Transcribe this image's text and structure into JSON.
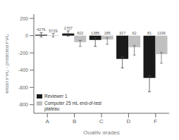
{
  "chart_data": {
    "type": "bar",
    "categories": [
      "A",
      "B",
      "C",
      "D",
      "F"
    ],
    "x_label": "Quality grades",
    "y_label": "Mean FVC - predicted FVC",
    "series": [
      {
        "name": "Reviewer 1",
        "color": "#1a1a1a",
        "values": [
          10,
          25,
          -50,
          -270,
          -490
        ],
        "error_lo": [
          25,
          30,
          75,
          105,
          160
        ],
        "error_hi": [
          25,
          30,
          25,
          25,
          25
        ],
        "n_labels": [
          "4276",
          "1707",
          "1386",
          "327",
          "81"
        ]
      },
      {
        "name": "Computer 25 mL end-of-test\nplateau",
        "color": "#c0c0c0",
        "values": [
          5,
          -75,
          -45,
          -135,
          -215
        ],
        "error_lo": [
          20,
          50,
          55,
          90,
          105
        ],
        "error_hi": [
          20,
          20,
          20,
          20,
          20
        ],
        "n_labels": [
          "5729",
          "602",
          "185",
          "62",
          "1199"
        ]
      }
    ],
    "ylim": [
      -900,
      250
    ],
    "yticks": [
      200,
      0,
      -200,
      -400,
      -600,
      -800
    ],
    "legend": "lower left"
  }
}
